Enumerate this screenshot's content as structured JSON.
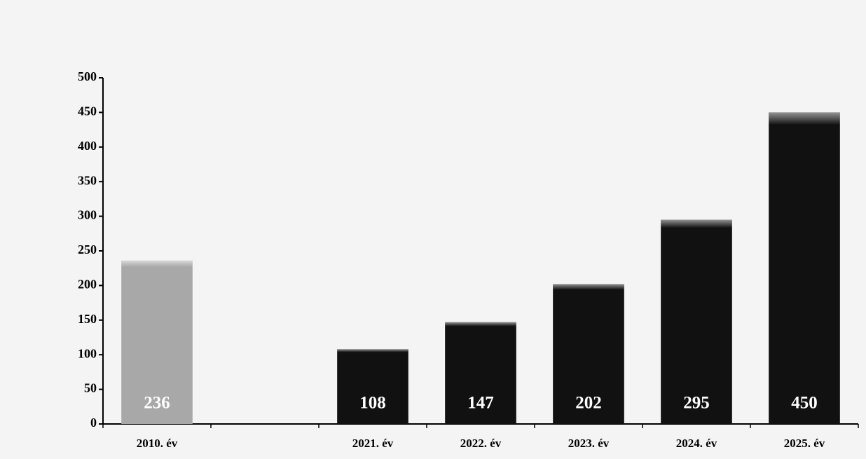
{
  "chart_data": {
    "type": "bar",
    "categories": [
      "2010. év",
      null,
      "2021. év",
      "2022. év",
      "2023. év",
      "2024. év",
      "2025. év"
    ],
    "values": [
      236,
      null,
      108,
      147,
      202,
      295,
      450
    ],
    "colors": [
      "#a8a8a8",
      null,
      "#111111",
      "#111111",
      "#111111",
      "#111111",
      "#111111"
    ],
    "ylim": [
      0,
      500
    ],
    "yticks": [
      0,
      50,
      100,
      150,
      200,
      250,
      300,
      350,
      400,
      450,
      500
    ]
  }
}
